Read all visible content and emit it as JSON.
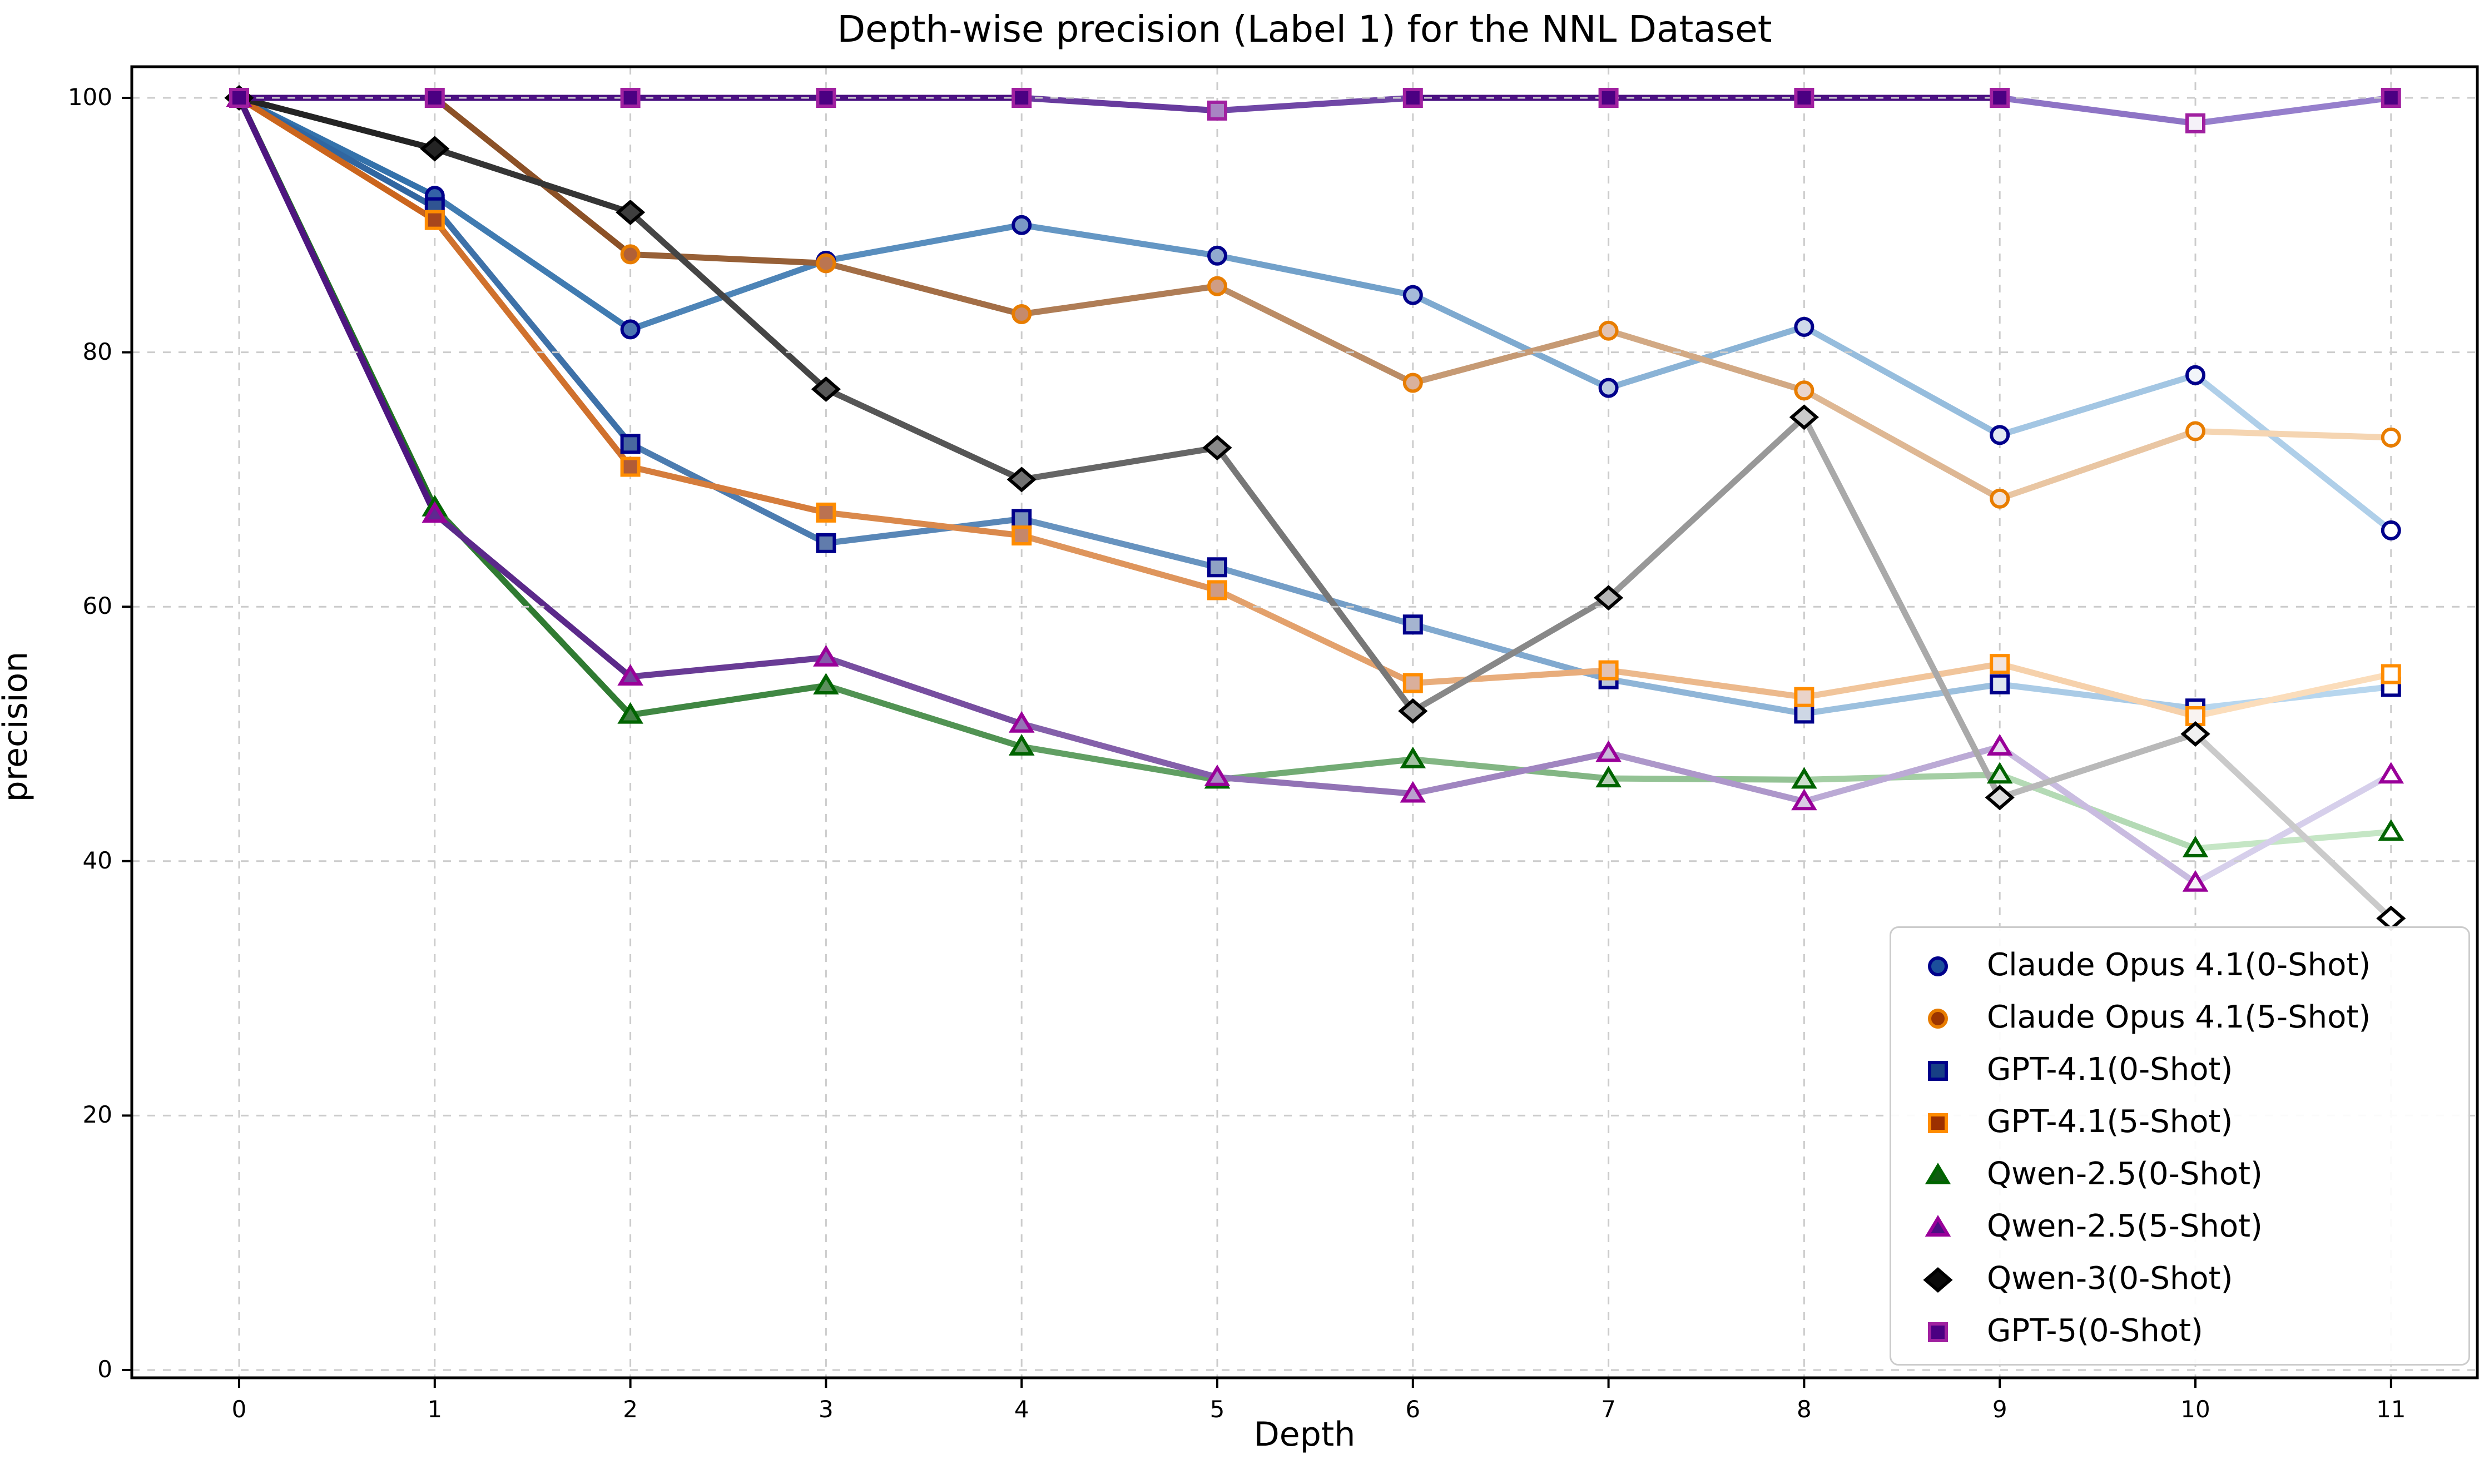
{
  "chart_data": {
    "type": "line",
    "title": "Depth-wise precision (Label 1) for the NNL Dataset",
    "xlabel": "Depth",
    "ylabel": "precision",
    "x": [
      0,
      1,
      2,
      3,
      4,
      5,
      6,
      7,
      8,
      9,
      10,
      11
    ],
    "xticks": [
      "0",
      "1",
      "2",
      "3",
      "4",
      "5",
      "6",
      "7",
      "8",
      "9",
      "10",
      "11"
    ],
    "yticks": [
      "0",
      "20",
      "40",
      "60",
      "80",
      "100"
    ],
    "ytick_values": [
      0,
      20,
      40,
      60,
      80,
      100
    ],
    "ylim": [
      0,
      100
    ],
    "grid": true,
    "grid_color": "#cccccc",
    "legend_position": "lower right",
    "style_note": "lines and marker faces fade from dark to light as depth increases; markers at value 100 stay dark",
    "series": [
      {
        "name": "Claude Opus 4.1(0-Shot)",
        "marker": "circle",
        "line_dark": "#2e6da8",
        "line_light": "#b5d4ec",
        "edge": "#00008b",
        "face": "#1b4f9c",
        "values": [
          100,
          92.3,
          81.8,
          87.2,
          90,
          87.6,
          84.5,
          77.2,
          82,
          73.5,
          78.2,
          66
        ]
      },
      {
        "name": "Claude Opus 4.1(5-Shot)",
        "marker": "circle",
        "line_dark": "#7a3b10",
        "line_light": "#fbdcba",
        "edge": "#e87d00",
        "face": "#9c3500",
        "values": [
          100,
          100,
          87.7,
          87,
          83,
          85.2,
          77.6,
          81.7,
          77,
          68.5,
          73.8,
          73.3
        ]
      },
      {
        "name": "GPT-4.1(0-Shot)",
        "marker": "square",
        "line_dark": "#2a609c",
        "line_light": "#bedcf2",
        "edge": "#00008b",
        "face": "#173f85",
        "values": [
          100,
          91.4,
          72.8,
          65,
          66.9,
          63.1,
          58.6,
          54.3,
          51.6,
          53.9,
          52,
          53.7
        ]
      },
      {
        "name": "GPT-4.1(5-Shot)",
        "marker": "square",
        "line_dark": "#c95f15",
        "line_light": "#fde3c3",
        "edge": "#ff8c00",
        "face": "#9c3000",
        "values": [
          100,
          90.4,
          71,
          67.4,
          65.6,
          61.3,
          54,
          55,
          52.9,
          55.5,
          51.4,
          54.7
        ]
      },
      {
        "name": "Qwen-2.5(0-Shot)",
        "marker": "triangle",
        "line_dark": "#17691a",
        "line_light": "#cdeccd",
        "edge": "#006400",
        "face": "#0f5c10",
        "values": [
          100,
          67.8,
          51.5,
          53.8,
          49,
          46.4,
          48,
          46.5,
          46.4,
          46.8,
          41,
          42.3
        ]
      },
      {
        "name": "Qwen-2.5(5-Shot)",
        "marker": "triangle",
        "line_dark": "#470d7a",
        "line_light": "#ddd8f0",
        "edge": "#990099",
        "face": "#4b0f82",
        "values": [
          100,
          67.3,
          54.5,
          56,
          50.8,
          46.6,
          45.3,
          48.5,
          44.7,
          49,
          38.3,
          46.8
        ]
      },
      {
        "name": "Qwen-3(0-Shot)",
        "marker": "diamond",
        "line_dark": "#1c1c1c",
        "line_light": "#d2d2d2",
        "edge": "#000000",
        "face": "#0a0a0a",
        "values": [
          100,
          96,
          91,
          77.1,
          70,
          72.5,
          51.8,
          60.7,
          74.9,
          45,
          50,
          35.5
        ]
      },
      {
        "name": "GPT-5(0-Shot)",
        "marker": "square",
        "line_dark": "#45087c",
        "line_light": "#9a85d0",
        "edge": "#a020a0",
        "face": "#4b0082",
        "values": [
          100,
          100,
          100,
          100,
          100,
          99,
          100,
          100,
          100,
          100,
          98,
          100
        ]
      }
    ]
  }
}
